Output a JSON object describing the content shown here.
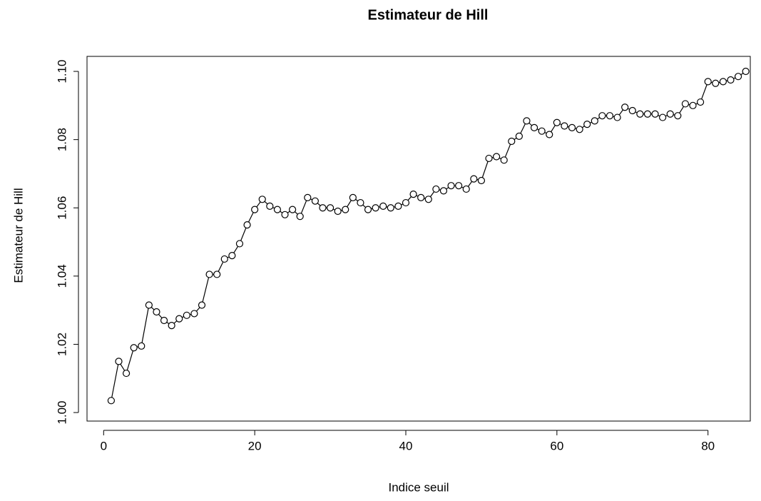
{
  "chart_data": {
    "type": "line",
    "title": "Estimateur de Hill",
    "x_label": "Indice seuil",
    "y_label": "Estimateur de Hill",
    "x": [
      1,
      2,
      3,
      4,
      5,
      6,
      7,
      8,
      9,
      10,
      11,
      12,
      13,
      14,
      15,
      16,
      17,
      18,
      19,
      20,
      21,
      22,
      23,
      24,
      25,
      26,
      27,
      28,
      29,
      30,
      31,
      32,
      33,
      34,
      35,
      36,
      37,
      38,
      39,
      40,
      41,
      42,
      43,
      44,
      45,
      46,
      47,
      48,
      49,
      50,
      51,
      52,
      53,
      54,
      55,
      56,
      57,
      58,
      59,
      60,
      61,
      62,
      63,
      64,
      65,
      66,
      67,
      68,
      69,
      70,
      71,
      72,
      73,
      74,
      75,
      76,
      77,
      78,
      79,
      80,
      81,
      82,
      83,
      84,
      85
    ],
    "values": [
      1.0035,
      1.015,
      1.0115,
      1.019,
      1.0195,
      1.0315,
      1.0295,
      1.027,
      1.0255,
      1.0275,
      1.0285,
      1.029,
      1.0315,
      1.0405,
      1.0405,
      1.045,
      1.046,
      1.0495,
      1.055,
      1.0595,
      1.0625,
      1.0605,
      1.0595,
      1.058,
      1.0595,
      1.0575,
      1.063,
      1.062,
      1.06,
      1.06,
      1.059,
      1.0595,
      1.063,
      1.0615,
      1.0595,
      1.06,
      1.0605,
      1.06,
      1.0605,
      1.0615,
      1.064,
      1.063,
      1.0625,
      1.0655,
      1.065,
      1.0665,
      1.0665,
      1.0655,
      1.0685,
      1.068,
      1.0745,
      1.075,
      1.074,
      1.0795,
      1.081,
      1.0855,
      1.0835,
      1.0825,
      1.0815,
      1.085,
      1.084,
      1.0835,
      1.083,
      1.0845,
      1.0855,
      1.087,
      1.087,
      1.0865,
      1.0895,
      1.0885,
      1.0875,
      1.0875,
      1.0875,
      1.0865,
      1.0875,
      1.087,
      1.0905,
      1.09,
      1.091,
      1.097,
      1.0965,
      1.097,
      1.0975,
      1.0985,
      1.1
    ],
    "color": "#000000",
    "xlim": [
      -2.2,
      85.6
    ],
    "xticks": [
      0,
      20,
      40,
      60,
      80
    ],
    "ylim": [
      0.9975,
      1.1044
    ],
    "yticks": [
      {
        "value": 1,
        "label": "1.00"
      },
      1.02,
      1.04,
      1.06,
      1.08,
      {
        "value": 1.1,
        "label": "1.10"
      }
    ]
  }
}
